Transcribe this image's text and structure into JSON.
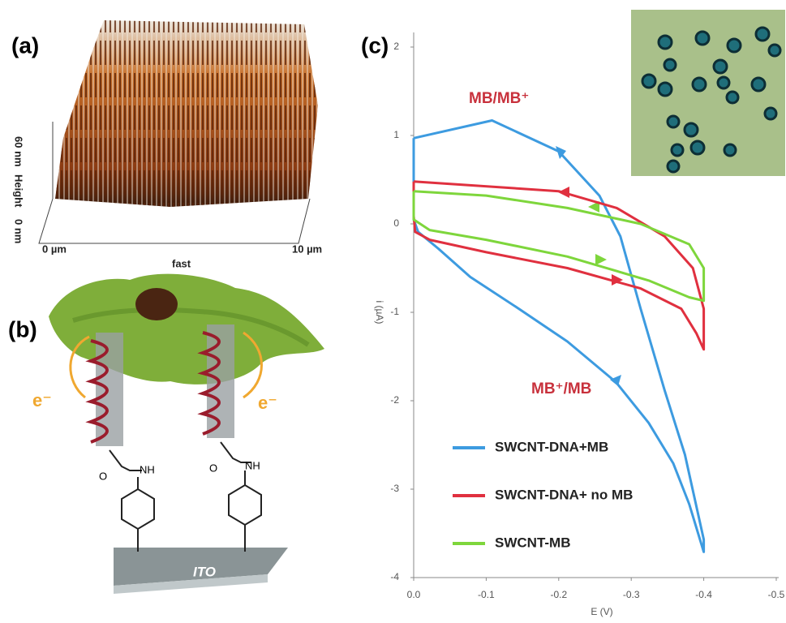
{
  "panel_labels": [
    "(a)",
    "(b)",
    "(c)"
  ],
  "afm": {
    "z_max": "60 nm",
    "z_label": "Height",
    "z_min": "0 nm",
    "x_min": "0 µm",
    "x_label": "fast",
    "x_max": "10 µm"
  },
  "schematic": {
    "electron_left": "e⁻",
    "electron_right": "e⁻",
    "amine_left": "NH",
    "oxygen_left": "O",
    "amine_right": "NH",
    "oxygen_right": "O",
    "substrate": "ITO"
  },
  "chart_data": {
    "type": "line",
    "x_label": "E (V)",
    "y_label": "i (µA)",
    "xlim": [
      0,
      -0.5
    ],
    "xticks": [
      {
        "value": 0,
        "label": "0.0"
      },
      -0.1,
      -0.2,
      -0.3,
      -0.4,
      -0.5
    ],
    "ylim": [
      -4,
      2
    ],
    "yticks": [
      2,
      1,
      0,
      -1,
      -2,
      -3,
      -4
    ],
    "annotations": [
      "MB/MB⁺",
      "MB⁺/MB"
    ],
    "series": [
      {
        "name": "SWCNT-DNA+MB",
        "color": "#3d9be0",
        "x": [
          0,
          -0.108,
          -0.2,
          -0.256,
          -0.285,
          -0.313,
          -0.346,
          -0.374,
          -0.4,
          -0.4,
          -0.38,
          -0.358,
          -0.324,
          -0.279,
          -0.212,
          -0.145,
          -0.078,
          -0.034,
          -0.006,
          0,
          0
        ],
        "values": [
          0.97,
          1.17,
          0.82,
          0.32,
          -0.14,
          -0.96,
          -1.88,
          -2.61,
          -3.57,
          -3.71,
          -3.17,
          -2.71,
          -2.25,
          -1.79,
          -1.33,
          -0.96,
          -0.6,
          -0.28,
          -0.09,
          0.05,
          0.97
        ]
      },
      {
        "name": "SWCNT-DNA+ no MB",
        "color": "#e0303f",
        "x": [
          0,
          -0.2,
          -0.28,
          -0.346,
          -0.385,
          -0.4,
          -0.4,
          -0.39,
          -0.369,
          -0.313,
          -0.212,
          -0.1,
          -0.022,
          -0.002,
          0,
          0
        ],
        "values": [
          0.48,
          0.37,
          0.18,
          -0.14,
          -0.5,
          -0.96,
          -1.42,
          -1.24,
          -0.96,
          -0.73,
          -0.5,
          -0.32,
          -0.18,
          -0.09,
          0.09,
          0.48
        ]
      },
      {
        "name": "SWCNT-MB",
        "color": "#7ed63c",
        "x": [
          0,
          -0.1,
          -0.212,
          -0.313,
          -0.38,
          -0.4,
          -0.4,
          -0.38,
          -0.324,
          -0.212,
          -0.1,
          -0.022,
          0,
          0
        ],
        "values": [
          0.37,
          0.32,
          0.18,
          0,
          -0.23,
          -0.5,
          -0.87,
          -0.83,
          -0.64,
          -0.37,
          -0.18,
          -0.07,
          0.05,
          0.37
        ]
      }
    ]
  }
}
